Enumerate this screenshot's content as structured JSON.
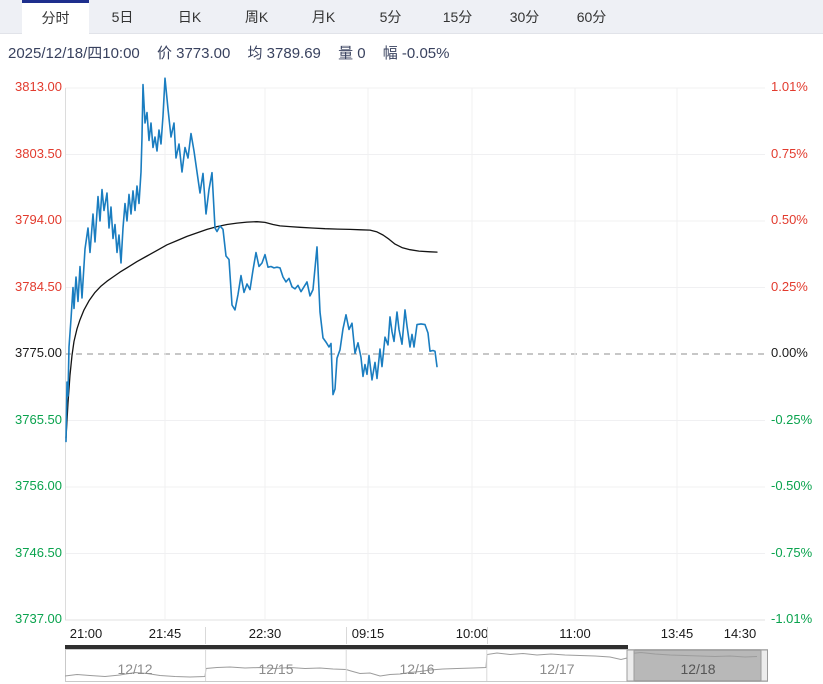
{
  "tabs": [
    {
      "label": "分时",
      "active": true
    },
    {
      "label": "5日"
    },
    {
      "label": "日K"
    },
    {
      "label": "周K"
    },
    {
      "label": "月K"
    },
    {
      "label": "5分"
    },
    {
      "label": "15分"
    },
    {
      "label": "30分"
    },
    {
      "label": "60分"
    }
  ],
  "status": {
    "datetime": "2025/12/18/四10:00",
    "price": "价 3773.00",
    "average": "均 3789.69",
    "volume": "量 0",
    "change": "幅 -0.05%"
  },
  "colors": {
    "up_red": "#e23b2e",
    "down_green": "#0aa34e",
    "price_line_blue": "#1a7dc0",
    "average_line_black": "#141414",
    "active_tab_accent": "#1e2f8d",
    "status_text": "#39425f"
  },
  "chart_data": {
    "type": "line",
    "title": "分时 intraday chart, 2025/12/18",
    "y_range": [
      3737,
      3813
    ],
    "prev_close": 3775.0,
    "current": {
      "price": 3773.0,
      "average": 3789.69,
      "volume": 0,
      "change_pct": -0.05
    },
    "y_axis_left": [
      "3813.00",
      "3803.50",
      "3794.00",
      "3784.50",
      "3775.00",
      "3765.50",
      "3756.00",
      "3746.50",
      "3737.00"
    ],
    "y_axis_right": [
      "1.01%",
      "0.75%",
      "0.50%",
      "0.25%",
      "0.00%",
      "-0.25%",
      "-0.50%",
      "-0.75%",
      "-1.01%"
    ],
    "x_ticks": [
      "21:00",
      "21:45",
      "22:30",
      "09:15",
      "10:00",
      "11:00",
      "13:45",
      "14:30"
    ],
    "legend_position": "none",
    "grid": true,
    "series": [
      {
        "name": "average",
        "color": "#141414",
        "width": 1.3,
        "points": [
          [
            1,
            3763
          ],
          [
            3,
            3768
          ],
          [
            5,
            3772
          ],
          [
            7,
            3774.8
          ],
          [
            9,
            3776.8
          ],
          [
            12,
            3778.6
          ],
          [
            15,
            3779.9
          ],
          [
            19,
            3781.3
          ],
          [
            24,
            3782.6
          ],
          [
            30,
            3783.8
          ],
          [
            36,
            3784.7
          ],
          [
            42,
            3785.4
          ],
          [
            48,
            3786
          ],
          [
            55,
            3786.7
          ],
          [
            63,
            3787.4
          ],
          [
            72,
            3788.2
          ],
          [
            82,
            3789
          ],
          [
            92,
            3789.8
          ],
          [
            102,
            3790.6
          ],
          [
            112,
            3791.2
          ],
          [
            122,
            3791.8
          ],
          [
            132,
            3792.3
          ],
          [
            142,
            3792.8
          ],
          [
            152,
            3793.2
          ],
          [
            162,
            3793.5
          ],
          [
            172,
            3793.7
          ],
          [
            182,
            3793.85
          ],
          [
            192,
            3793.9
          ],
          [
            200,
            3793.8
          ],
          [
            208,
            3793.5
          ],
          [
            215,
            3793.3
          ],
          [
            225,
            3793.2
          ],
          [
            235,
            3793.1
          ],
          [
            247,
            3793
          ],
          [
            260,
            3792.9
          ],
          [
            273,
            3792.85
          ],
          [
            285,
            3792.8
          ],
          [
            296,
            3792.75
          ],
          [
            305,
            3792.7
          ],
          [
            312,
            3792.45
          ],
          [
            318,
            3792
          ],
          [
            324,
            3791.4
          ],
          [
            330,
            3790.7
          ],
          [
            337,
            3790.2
          ],
          [
            345,
            3789.9
          ],
          [
            354,
            3789.7
          ],
          [
            365,
            3789.6
          ],
          [
            372,
            3789.55
          ]
        ]
      },
      {
        "name": "price",
        "color": "#1a7dc0",
        "width": 1.6,
        "points": [
          [
            1,
            3762.5
          ],
          [
            2,
            3771
          ],
          [
            3,
            3769
          ],
          [
            4,
            3776
          ],
          [
            6,
            3780
          ],
          [
            8,
            3784.5
          ],
          [
            9,
            3781.5
          ],
          [
            11,
            3786
          ],
          [
            13,
            3782.5
          ],
          [
            15,
            3787.5
          ],
          [
            17,
            3783
          ],
          [
            20,
            3790
          ],
          [
            23,
            3793
          ],
          [
            25,
            3789.5
          ],
          [
            28,
            3795
          ],
          [
            30,
            3791
          ],
          [
            33,
            3797.5
          ],
          [
            35,
            3794
          ],
          [
            37,
            3798.5
          ],
          [
            39,
            3795.5
          ],
          [
            42,
            3798
          ],
          [
            44,
            3793
          ],
          [
            46,
            3796
          ],
          [
            48,
            3791.5
          ],
          [
            50,
            3793.5
          ],
          [
            52,
            3789.5
          ],
          [
            54,
            3792
          ],
          [
            56,
            3788
          ],
          [
            58,
            3793
          ],
          [
            60,
            3796.5
          ],
          [
            62,
            3794
          ],
          [
            64,
            3797.8
          ],
          [
            66,
            3795
          ],
          [
            68,
            3798.3
          ],
          [
            70,
            3795.5
          ],
          [
            72,
            3799
          ],
          [
            74,
            3796.5
          ],
          [
            76,
            3801
          ],
          [
            77,
            3806
          ],
          [
            78,
            3813.5
          ],
          [
            80,
            3808
          ],
          [
            82,
            3809.5
          ],
          [
            84,
            3805.5
          ],
          [
            86,
            3808
          ],
          [
            88,
            3804.5
          ],
          [
            90,
            3806
          ],
          [
            92,
            3804
          ],
          [
            94,
            3807
          ],
          [
            96,
            3805
          ],
          [
            98,
            3809
          ],
          [
            100,
            3814.4
          ],
          [
            103,
            3810
          ],
          [
            106,
            3806
          ],
          [
            109,
            3808
          ],
          [
            111,
            3803
          ],
          [
            114,
            3805
          ],
          [
            117,
            3801
          ],
          [
            120,
            3804.5
          ],
          [
            123,
            3803
          ],
          [
            126,
            3806.5
          ],
          [
            129,
            3804
          ],
          [
            132,
            3801
          ],
          [
            135,
            3798
          ],
          [
            138,
            3800.8
          ],
          [
            141,
            3795
          ],
          [
            144,
            3798.5
          ],
          [
            147,
            3800.9
          ],
          [
            150,
            3793
          ],
          [
            152,
            3792.5
          ],
          [
            155,
            3793.3
          ],
          [
            158,
            3792.8
          ],
          [
            161,
            3789
          ],
          [
            164,
            3788.5
          ],
          [
            167,
            3782
          ],
          [
            170,
            3781.3
          ],
          [
            173,
            3783.5
          ],
          [
            176,
            3786.2
          ],
          [
            179,
            3783.8
          ],
          [
            182,
            3785
          ],
          [
            185,
            3784.2
          ],
          [
            188,
            3787
          ],
          [
            191,
            3789.5
          ],
          [
            194,
            3787.5
          ],
          [
            197,
            3788
          ],
          [
            200,
            3789.2
          ],
          [
            203,
            3787.4
          ],
          [
            206,
            3787.5
          ],
          [
            209,
            3787.3
          ],
          [
            212,
            3787.4
          ],
          [
            215,
            3787.3
          ],
          [
            218,
            3786
          ],
          [
            221,
            3785.3
          ],
          [
            224,
            3785.8
          ],
          [
            227,
            3784.6
          ],
          [
            230,
            3784.3
          ],
          [
            233,
            3784.8
          ],
          [
            236,
            3783.9
          ],
          [
            239,
            3784.6
          ],
          [
            242,
            3785.3
          ],
          [
            245,
            3783.3
          ],
          [
            248,
            3784.2
          ],
          [
            252,
            3790.3
          ],
          [
            255,
            3781
          ],
          [
            258,
            3777.3
          ],
          [
            261,
            3776.7
          ],
          [
            264,
            3776
          ],
          [
            266,
            3776.5
          ],
          [
            268,
            3769.2
          ],
          [
            270,
            3770
          ],
          [
            272,
            3774.4
          ],
          [
            275,
            3775.6
          ],
          [
            278,
            3778.6
          ],
          [
            281,
            3780.6
          ],
          [
            284,
            3778.5
          ],
          [
            287,
            3779.4
          ],
          [
            290,
            3775.1
          ],
          [
            293,
            3776.6
          ],
          [
            296,
            3774.5
          ],
          [
            298,
            3771.8
          ],
          [
            300,
            3773.5
          ],
          [
            302,
            3772.1
          ],
          [
            304,
            3774.8
          ],
          [
            307,
            3771.3
          ],
          [
            310,
            3773.8
          ],
          [
            312,
            3771.5
          ],
          [
            315,
            3775.7
          ],
          [
            317,
            3773.2
          ],
          [
            320,
            3777.4
          ],
          [
            323,
            3776.3
          ],
          [
            325,
            3780.3
          ],
          [
            327,
            3778.2
          ],
          [
            329,
            3776.8
          ],
          [
            332,
            3781
          ],
          [
            334,
            3778.5
          ],
          [
            337,
            3776.4
          ],
          [
            340,
            3781.3
          ],
          [
            342,
            3779
          ],
          [
            345,
            3776
          ],
          [
            347,
            3777.8
          ],
          [
            349,
            3776
          ],
          [
            352,
            3779.2
          ],
          [
            356,
            3779.3
          ],
          [
            360,
            3779.2
          ],
          [
            363,
            3778
          ],
          [
            365,
            3775.4
          ],
          [
            368,
            3775.5
          ],
          [
            370,
            3775.4
          ],
          [
            372,
            3773.2
          ]
        ]
      }
    ]
  },
  "navigator": {
    "dates": [
      "12/12",
      "12/15",
      "12/16",
      "12/17",
      "12/18"
    ],
    "selected_date": "12/18",
    "line": [
      [
        0,
        27
      ],
      [
        12,
        25.5
      ],
      [
        25,
        26.5
      ],
      [
        40,
        27.5
      ],
      [
        55,
        26
      ],
      [
        70,
        23.5
      ],
      [
        82,
        24.5
      ],
      [
        95,
        26.5
      ],
      [
        110,
        27.5
      ],
      [
        125,
        28
      ],
      [
        140,
        27.5
      ],
      [
        141,
        19.5
      ],
      [
        152,
        18.5
      ],
      [
        165,
        18
      ],
      [
        180,
        19
      ],
      [
        195,
        18.5
      ],
      [
        210,
        19.5
      ],
      [
        225,
        18.5
      ],
      [
        240,
        19.5
      ],
      [
        255,
        19
      ],
      [
        268,
        20
      ],
      [
        281,
        20.5
      ],
      [
        286,
        22
      ],
      [
        295,
        24.5
      ],
      [
        305,
        24
      ],
      [
        315,
        27
      ],
      [
        325,
        25.5
      ],
      [
        335,
        25
      ],
      [
        345,
        23.5
      ],
      [
        355,
        22.5
      ],
      [
        365,
        21
      ],
      [
        378,
        20
      ],
      [
        392,
        19.5
      ],
      [
        408,
        19
      ],
      [
        421,
        18.5
      ],
      [
        422,
        5.5
      ],
      [
        432,
        4
      ],
      [
        445,
        5.5
      ],
      [
        458,
        4.5
      ],
      [
        472,
        6
      ],
      [
        486,
        5
      ],
      [
        500,
        6
      ],
      [
        515,
        6.5
      ],
      [
        530,
        7
      ],
      [
        545,
        8
      ],
      [
        556,
        10.5
      ],
      [
        562,
        9
      ],
      [
        566,
        4.5
      ],
      [
        576,
        3.5
      ],
      [
        590,
        5
      ],
      [
        605,
        6
      ],
      [
        620,
        6.5
      ],
      [
        635,
        7
      ],
      [
        650,
        7.5
      ],
      [
        665,
        7
      ],
      [
        680,
        8
      ],
      [
        692,
        7.5
      ]
    ]
  }
}
